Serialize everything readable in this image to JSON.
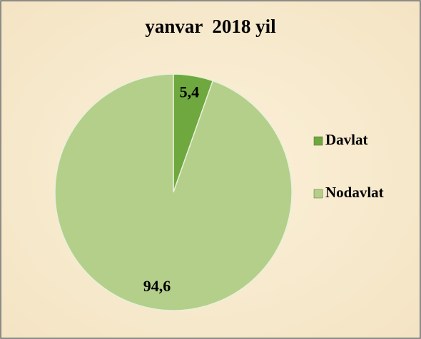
{
  "chart_data": {
    "type": "pie",
    "title": "yanvar  2018 yil",
    "categories": [
      "Davlat",
      "Nodavlat"
    ],
    "values": [
      5.4,
      94.6
    ],
    "value_labels": [
      "5,4",
      "94,6"
    ],
    "colors": [
      "#6ea83e",
      "#b3cf8a"
    ],
    "legend": "right"
  }
}
